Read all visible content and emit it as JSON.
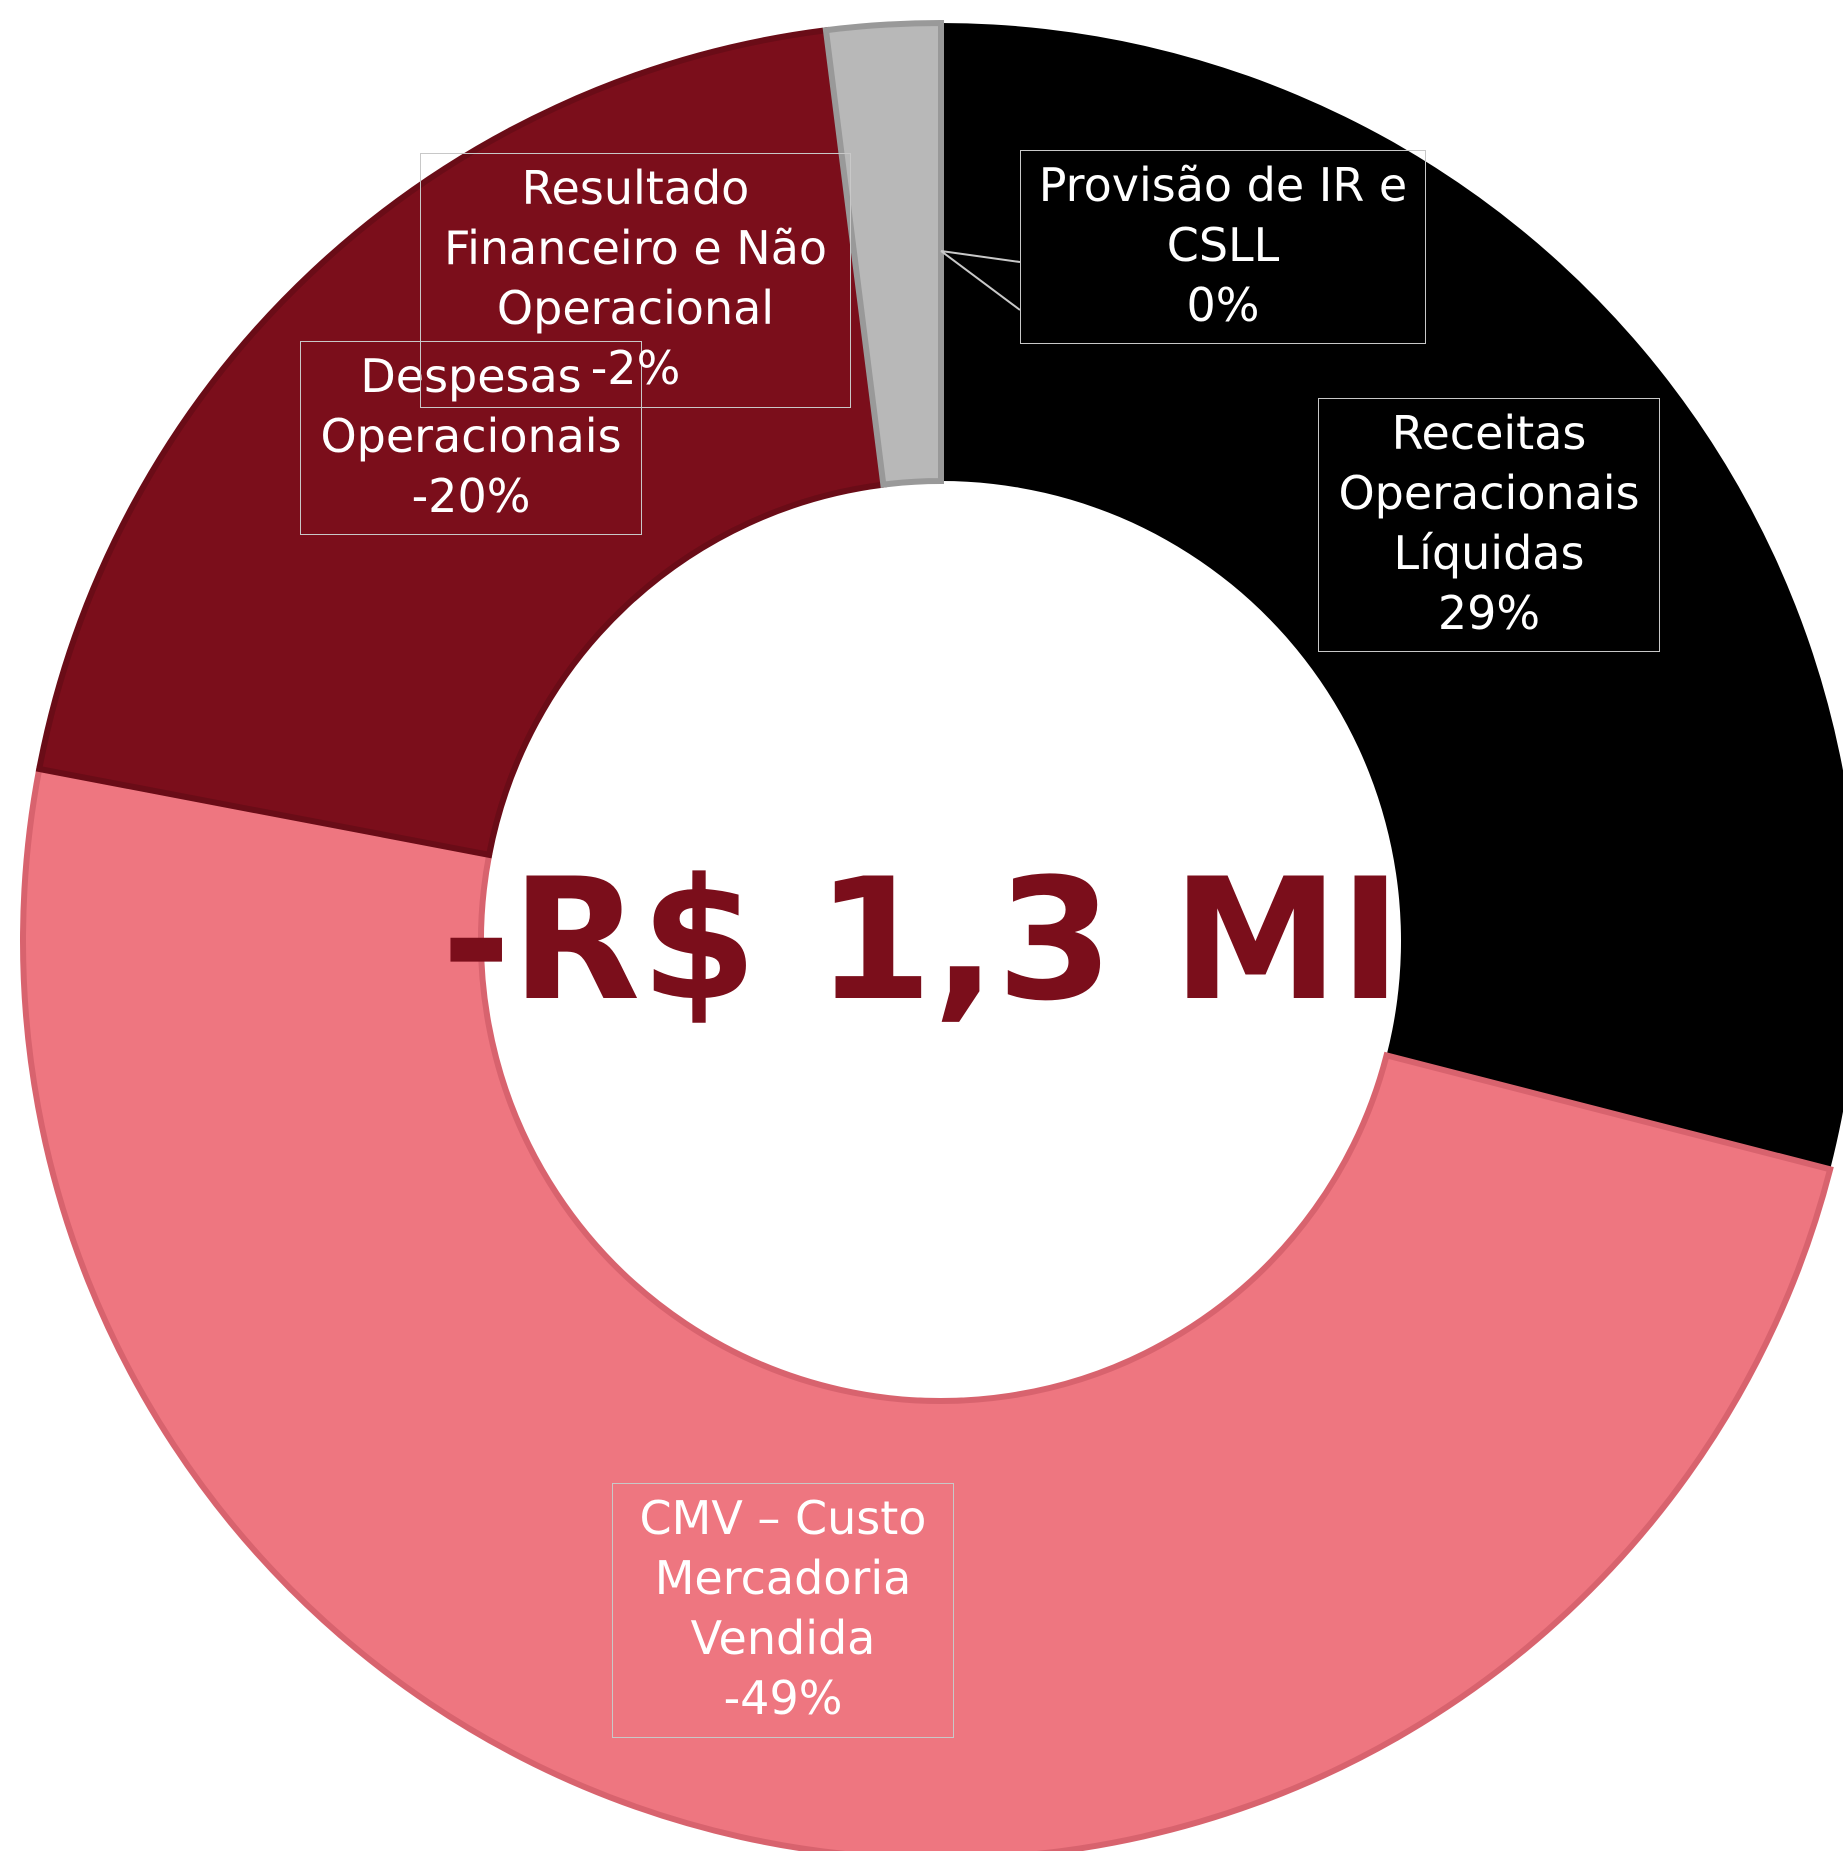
{
  "chart_data": {
    "type": "donut",
    "center_label": "-R$ 1,3 MI",
    "categories": [
      "Receitas Operacionais Líquidas",
      "CMV – Custo Mercadoria Vendida",
      "Despesas Operacionais",
      "Resultado Financeiro e Não Operacional",
      "Provisão de IR e CSLL"
    ],
    "values": [
      29,
      -49,
      -20,
      -2,
      0
    ],
    "value_labels": [
      "29%",
      "-49%",
      "-20%",
      "-2%",
      "0%"
    ],
    "colors": [
      "#000000",
      "#ee7680",
      "#7b0e1b",
      "#b8b8b8",
      "#ffffff"
    ]
  }
}
